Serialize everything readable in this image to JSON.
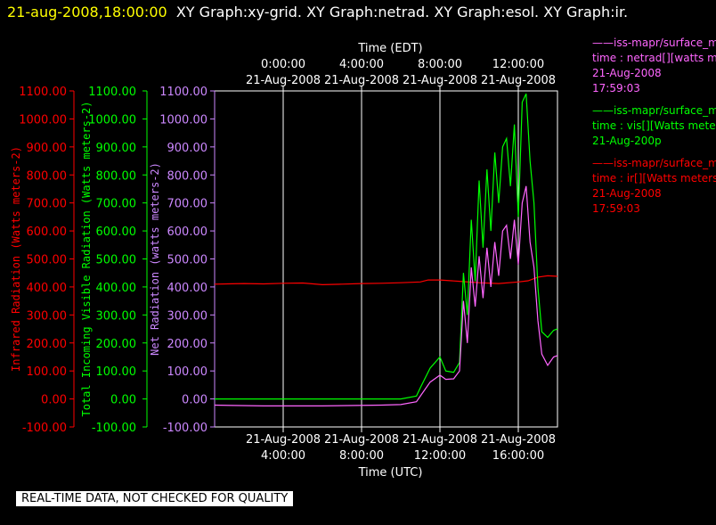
{
  "header": {
    "datetime": "21-aug-2008,18:00:00",
    "graphs": "XY Graph:xy-grid.  XY Graph:netrad.  XY Graph:esol.  XY Graph:ir."
  },
  "legend": [
    {
      "line1": "——iss-mapr/surface_m",
      "line2": "time : netrad[][watts m",
      "line3": "21-Aug-2008",
      "line4": "17:59:03",
      "color": "#ff66ff"
    },
    {
      "line1": "——iss-mapr/surface_m",
      "line2": "time : vis[][Watts mete",
      "line3": "21-Aug-200p",
      "line4": "",
      "color": "#00ff00"
    },
    {
      "line1": "——iss-mapr/surface_m",
      "line2": "time : ir[][Watts meters",
      "line3": "21-Aug-2008",
      "line4": "17:59:03",
      "color": "#ff0000"
    }
  ],
  "footer": "REAL-TIME DATA, NOT CHECKED FOR QUALITY",
  "chart_data": {
    "type": "line",
    "x_axis_bottom": {
      "label": "Time (UTC)",
      "ticks": [
        {
          "hours": 4,
          "date": "21-Aug-2008",
          "time": "4:00:00"
        },
        {
          "hours": 8,
          "date": "21-Aug-2008",
          "time": "8:00:00"
        },
        {
          "hours": 12,
          "date": "21-Aug-2008",
          "time": "12:00:00"
        },
        {
          "hours": 16,
          "date": "21-Aug-2008",
          "time": "16:00:00"
        }
      ],
      "range": [
        0.5,
        18.0
      ]
    },
    "x_axis_top": {
      "label": "Time (EDT)",
      "ticks": [
        {
          "hours": 4,
          "time": "0:00:00",
          "date": "21-Aug-2008"
        },
        {
          "hours": 8,
          "time": "4:00:00",
          "date": "21-Aug-2008"
        },
        {
          "hours": 12,
          "time": "8:00:00",
          "date": "21-Aug-2008"
        },
        {
          "hours": 16,
          "time": "12:00:00",
          "date": "21-Aug-2008"
        }
      ]
    },
    "y_axes": [
      {
        "label": "Infrared Radiation (Watts meters-2)",
        "color": "#ff0000"
      },
      {
        "label": "Total Incoming Visible Radiation (Watts meters-2)",
        "color": "#00ff00"
      },
      {
        "label": "Net Radiation (watts meters-2)",
        "color": "#cc88ff"
      }
    ],
    "y_ticks": [
      "1100.00",
      "1000.00",
      "900.00",
      "800.00",
      "700.00",
      "600.00",
      "500.00",
      "400.00",
      "300.00",
      "200.00",
      "100.00",
      "0.00",
      "-100.00"
    ],
    "ylim": [
      -100,
      1100
    ],
    "grid": true,
    "series": [
      {
        "name": "ir",
        "color": "#ff0000",
        "x": [
          0.5,
          2,
          3,
          4,
          5,
          6,
          7,
          8,
          9,
          10,
          11,
          11.4,
          12,
          13,
          14,
          15,
          16,
          16.5,
          17,
          17.5,
          18
        ],
        "y": [
          410,
          412,
          411,
          413,
          414,
          408,
          410,
          412,
          413,
          415,
          418,
          425,
          425,
          420,
          415,
          412,
          418,
          422,
          435,
          440,
          438
        ]
      },
      {
        "name": "vis",
        "color": "#00ff00",
        "x": [
          0.5,
          5,
          8,
          10,
          10.8,
          11,
          11.5,
          12,
          12.3,
          12.7,
          13,
          13.2,
          13.4,
          13.6,
          13.8,
          14,
          14.2,
          14.4,
          14.6,
          14.8,
          15,
          15.2,
          15.4,
          15.6,
          15.8,
          16,
          16.2,
          16.4,
          16.6,
          16.8,
          17,
          17.2,
          17.5,
          17.8,
          18
        ],
        "y": [
          0,
          0,
          0,
          0,
          10,
          40,
          110,
          150,
          100,
          95,
          130,
          450,
          300,
          640,
          420,
          780,
          540,
          820,
          600,
          880,
          700,
          900,
          930,
          760,
          980,
          650,
          1060,
          1090,
          850,
          700,
          400,
          240,
          220,
          245,
          250
        ]
      },
      {
        "name": "netrad",
        "color": "#ff66ff",
        "x": [
          0.5,
          3,
          6,
          9,
          10,
          10.8,
          11,
          11.5,
          12,
          12.3,
          12.7,
          13,
          13.2,
          13.4,
          13.6,
          13.8,
          14,
          14.2,
          14.4,
          14.6,
          14.8,
          15,
          15.2,
          15.4,
          15.6,
          15.8,
          16,
          16.2,
          16.4,
          16.6,
          16.8,
          17,
          17.2,
          17.5,
          17.8,
          18
        ],
        "y": [
          -22,
          -25,
          -25,
          -22,
          -20,
          -10,
          10,
          60,
          85,
          70,
          72,
          100,
          350,
          200,
          470,
          330,
          510,
          360,
          540,
          400,
          560,
          440,
          600,
          620,
          500,
          640,
          480,
          700,
          760,
          560,
          470,
          280,
          160,
          120,
          150,
          155
        ]
      }
    ]
  }
}
